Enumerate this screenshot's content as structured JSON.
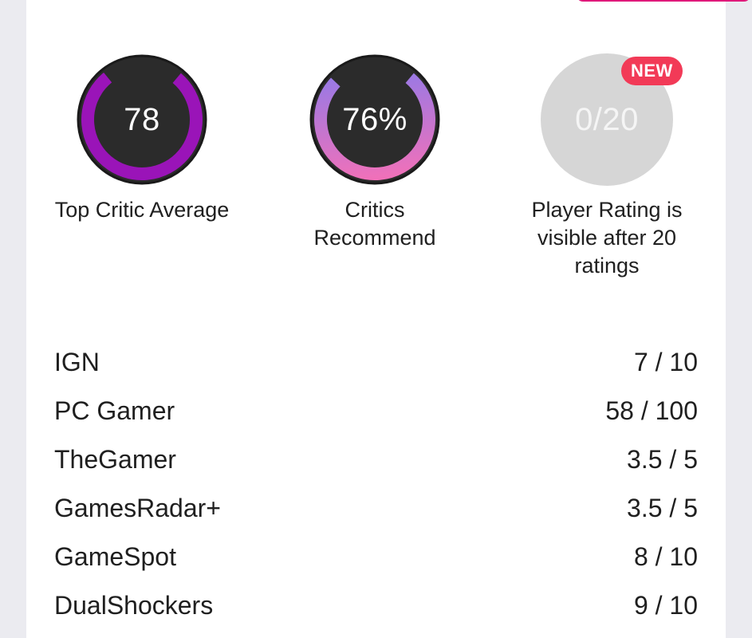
{
  "scores": {
    "top_critic": {
      "value": "78",
      "label": "Top Critic Average",
      "fraction": 0.78
    },
    "critics_recommend": {
      "value": "76%",
      "label": "Critics Recommend",
      "fraction": 0.76
    },
    "player_rating": {
      "value": "0/20",
      "label": "Player Rating is visible after 20 ratings",
      "badge": "NEW"
    }
  },
  "reviews": [
    {
      "outlet": "IGN",
      "score": "7 / 10"
    },
    {
      "outlet": "PC Gamer",
      "score": "58 / 100"
    },
    {
      "outlet": "TheGamer",
      "score": "3.5 / 5"
    },
    {
      "outlet": "GamesRadar+",
      "score": "3.5 / 5"
    },
    {
      "outlet": "GameSpot",
      "score": "8 / 10"
    },
    {
      "outlet": "DualShockers",
      "score": "9 / 10"
    }
  ],
  "colors": {
    "ring_background": "#2b2b2b",
    "top_critic_arc": "#9a14b8",
    "recommend_arc_start": "#ff6fb2",
    "recommend_arc_end": "#7f7cf2",
    "player_placeholder": "#d6d6d6",
    "badge": "#f23a57"
  }
}
